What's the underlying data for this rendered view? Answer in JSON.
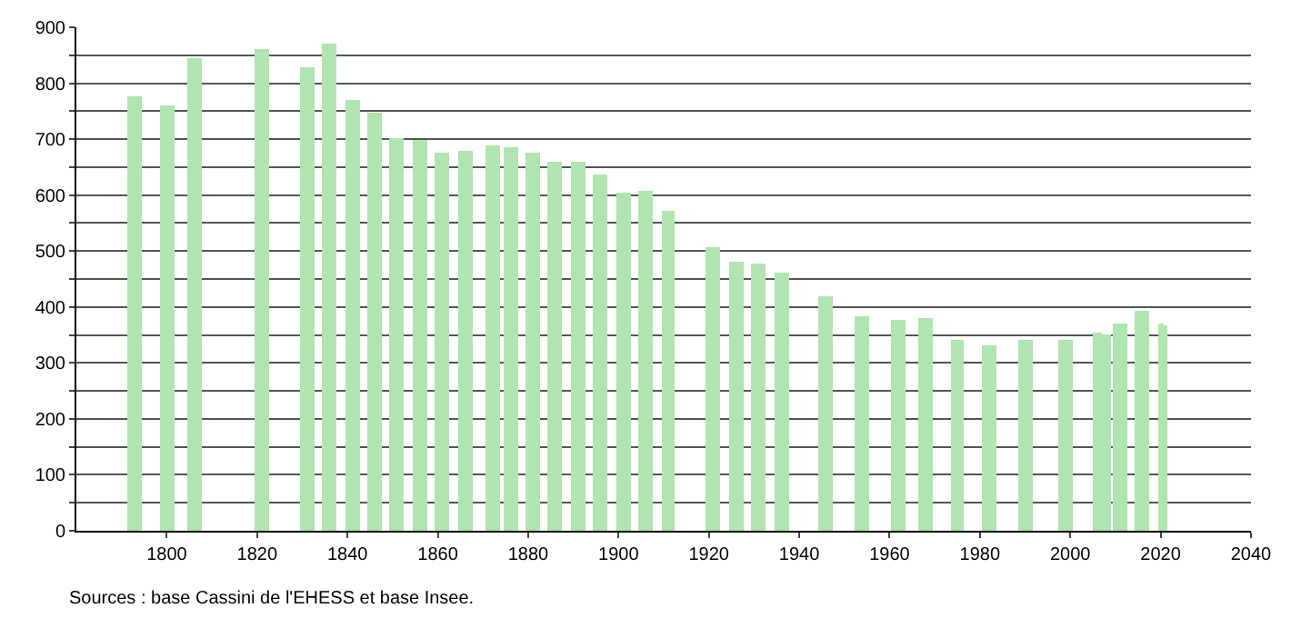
{
  "chart_data": {
    "type": "bar",
    "x": [
      1793,
      1800,
      1806,
      1821,
      1831,
      1836,
      1841,
      1846,
      1851,
      1856,
      1861,
      1866,
      1872,
      1876,
      1881,
      1886,
      1891,
      1896,
      1901,
      1906,
      1911,
      1921,
      1926,
      1931,
      1936,
      1946,
      1954,
      1962,
      1968,
      1975,
      1982,
      1990,
      1999,
      2006,
      2008,
      2011,
      2016,
      2020,
      2021
    ],
    "values": [
      775,
      760,
      845,
      862,
      828,
      872,
      770,
      748,
      703,
      698,
      675,
      678,
      690,
      686,
      675,
      660,
      660,
      637,
      605,
      608,
      572,
      508,
      482,
      477,
      462,
      418,
      383,
      377,
      380,
      340,
      332,
      340,
      340,
      355,
      350,
      370,
      393,
      370,
      367
    ],
    "color": "#b0e4b0",
    "xlim": [
      1780,
      2040
    ],
    "xticks": [
      1800,
      1820,
      1840,
      1860,
      1880,
      1900,
      1920,
      1940,
      1960,
      1980,
      2000,
      2020,
      2040
    ],
    "ylim": [
      0,
      900
    ],
    "yticks": [
      0,
      {
        "value": 50,
        "label": null
      },
      100,
      {
        "value": 150,
        "label": null
      },
      200,
      {
        "value": 250,
        "label": null
      },
      300,
      {
        "value": 350,
        "label": null
      },
      400,
      {
        "value": 450,
        "label": null
      },
      500,
      {
        "value": 550,
        "label": null
      },
      600,
      {
        "value": 650,
        "label": null
      },
      700,
      {
        "value": 750,
        "label": null
      },
      800,
      {
        "value": 850,
        "label": null
      },
      900
    ],
    "grid": "y",
    "annotations": [
      "Sources : base Cassini de l'EHESS et base Insee."
    ]
  }
}
